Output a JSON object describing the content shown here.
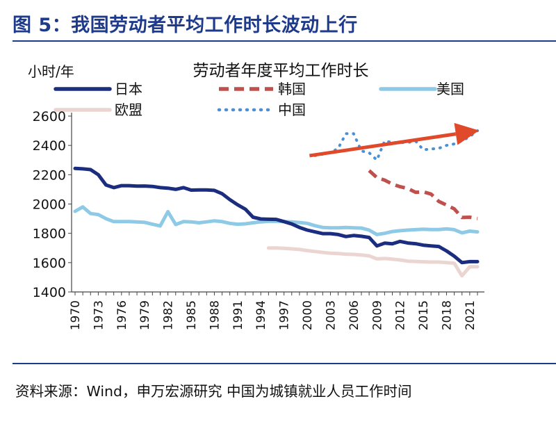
{
  "figure_title": "图 5：我国劳动者平均工作时长波动上行",
  "source_note": "资料来源：Wind，申万宏源研究 中国为城镇就业人员工作时间",
  "colors": {
    "japan": "#1a2d7e",
    "korea": "#c0504d",
    "usa": "#8ecae6",
    "eu": "#ebd5d1",
    "china": "#4a90d9",
    "arrow": "#e04a2b",
    "rule": "#1e3a8a"
  },
  "chart_data": {
    "type": "line",
    "title": "劳动者年度平均工作时长",
    "ylabel": "小时/年",
    "xlabel": "",
    "ylim": [
      1400,
      2600
    ],
    "xlim": [
      1970,
      2022
    ],
    "yticks": [
      1400,
      1600,
      1800,
      2000,
      2200,
      2400,
      2600
    ],
    "xticks": [
      "1970",
      "1973",
      "1976",
      "1979",
      "1982",
      "1985",
      "1988",
      "1991",
      "1994",
      "1997",
      "2000",
      "2003",
      "2006",
      "2009",
      "2012",
      "2015",
      "2018",
      "2021"
    ],
    "grid": false,
    "legend_position": "top",
    "annotation": "red arrow rising from 2000 to 2020, indicating upward trend",
    "series": [
      {
        "name": "日本",
        "color": "japan",
        "style": "solid",
        "x": [
          1970,
          1971,
          1972,
          1973,
          1974,
          1975,
          1976,
          1977,
          1978,
          1979,
          1980,
          1981,
          1982,
          1983,
          1984,
          1985,
          1986,
          1987,
          1988,
          1989,
          1990,
          1991,
          1992,
          1993,
          1994,
          1995,
          1996,
          1997,
          1998,
          1999,
          2000,
          2001,
          2002,
          2003,
          2004,
          2005,
          2006,
          2007,
          2008,
          2009,
          2010,
          2011,
          2012,
          2013,
          2014,
          2015,
          2016,
          2017,
          2018,
          2019,
          2020,
          2021,
          2022
        ],
        "values": [
          2243,
          2240,
          2235,
          2200,
          2130,
          2112,
          2125,
          2125,
          2122,
          2123,
          2120,
          2112,
          2108,
          2100,
          2112,
          2095,
          2096,
          2096,
          2093,
          2070,
          2030,
          1995,
          1965,
          1910,
          1898,
          1896,
          1895,
          1880,
          1864,
          1840,
          1822,
          1810,
          1798,
          1798,
          1792,
          1778,
          1785,
          1780,
          1772,
          1714,
          1733,
          1728,
          1745,
          1734,
          1729,
          1719,
          1714,
          1710,
          1680,
          1644,
          1600,
          1607,
          1607
        ]
      },
      {
        "name": "韩国",
        "color": "korea",
        "style": "dashed",
        "x": [
          2008,
          2009,
          2010,
          2011,
          2012,
          2013,
          2014,
          2015,
          2016,
          2017,
          2018,
          2019,
          2020,
          2021,
          2022
        ],
        "values": [
          2228,
          2180,
          2163,
          2136,
          2118,
          2106,
          2080,
          2083,
          2068,
          2018,
          1993,
          1967,
          1908,
          1910,
          1901
        ]
      },
      {
        "name": "美国",
        "color": "usa",
        "style": "solid",
        "x": [
          1970,
          1971,
          1972,
          1973,
          1974,
          1975,
          1976,
          1977,
          1978,
          1979,
          1980,
          1981,
          1982,
          1983,
          1984,
          1985,
          1986,
          1987,
          1988,
          1989,
          1990,
          1991,
          1992,
          1993,
          1994,
          1995,
          1996,
          1997,
          1998,
          1999,
          2000,
          2001,
          2002,
          2003,
          2004,
          2005,
          2006,
          2007,
          2008,
          2009,
          2010,
          2011,
          2012,
          2013,
          2014,
          2015,
          2016,
          2017,
          2018,
          2019,
          2020,
          2021,
          2022
        ],
        "values": [
          1950,
          1980,
          1935,
          1928,
          1900,
          1880,
          1880,
          1880,
          1878,
          1875,
          1862,
          1850,
          1948,
          1860,
          1880,
          1878,
          1872,
          1878,
          1885,
          1880,
          1868,
          1862,
          1865,
          1872,
          1878,
          1882,
          1882,
          1880,
          1878,
          1874,
          1868,
          1852,
          1840,
          1838,
          1838,
          1840,
          1838,
          1836,
          1822,
          1792,
          1800,
          1812,
          1818,
          1822,
          1825,
          1828,
          1826,
          1826,
          1830,
          1825,
          1803,
          1815,
          1810
        ]
      },
      {
        "name": "欧盟",
        "color": "eu",
        "style": "solid",
        "x": [
          1995,
          1996,
          1997,
          1998,
          1999,
          2000,
          2001,
          2002,
          2003,
          2004,
          2005,
          2006,
          2007,
          2008,
          2009,
          2010,
          2011,
          2012,
          2013,
          2014,
          2015,
          2016,
          2017,
          2018,
          2019,
          2020,
          2021,
          2022
        ],
        "values": [
          1700,
          1700,
          1698,
          1694,
          1690,
          1682,
          1676,
          1670,
          1664,
          1662,
          1658,
          1656,
          1652,
          1646,
          1626,
          1628,
          1624,
          1618,
          1610,
          1608,
          1606,
          1604,
          1604,
          1600,
          1596,
          1510,
          1572,
          1572
        ]
      },
      {
        "name": "中国",
        "color": "china",
        "style": "dotted",
        "x": [
          2001,
          2002,
          2003,
          2004,
          2005,
          2006,
          2007,
          2008,
          2009,
          2010,
          2011,
          2012,
          2013,
          2014,
          2015,
          2016,
          2017,
          2018,
          2019,
          2020,
          2021,
          2022
        ],
        "values": [
          2330,
          2340,
          2350,
          2380,
          2480,
          2480,
          2362,
          2350,
          2300,
          2430,
          2420,
          2420,
          2420,
          2430,
          2370,
          2375,
          2380,
          2400,
          2410,
          2430,
          2460,
          2500
        ]
      }
    ]
  }
}
